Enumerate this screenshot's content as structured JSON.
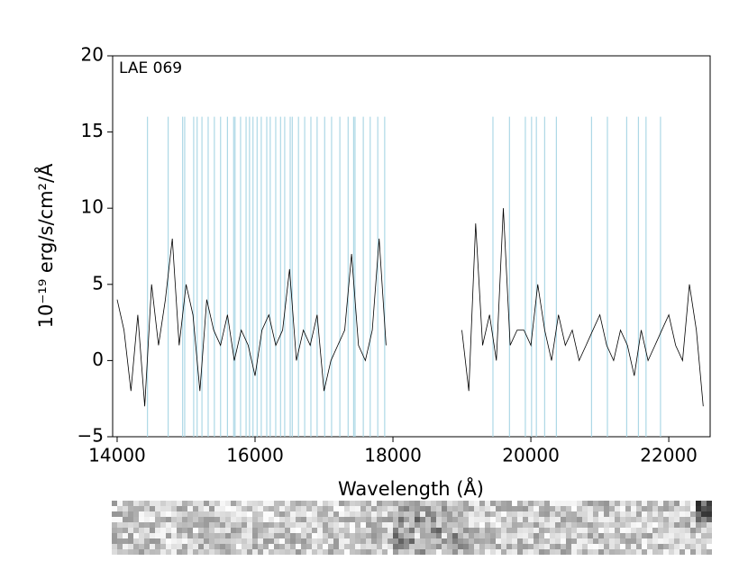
{
  "chart_data": {
    "type": "line",
    "annotation": "LAE 069",
    "x_label": "Wavelength (Å)",
    "y_label": "10⁻¹⁹ erg/s/cm²/Å",
    "xlim": [
      13935,
      22600
    ],
    "ylim": [
      -5,
      20
    ],
    "xticks": [
      14000,
      16000,
      18000,
      20000,
      22000
    ],
    "yticks": [
      {
        "value": -5,
        "label": "−5"
      },
      0,
      5,
      10,
      15,
      20
    ],
    "x": [
      14000,
      14100,
      14200,
      14300,
      14400,
      14500,
      14600,
      14700,
      14800,
      14900,
      15000,
      15100,
      15200,
      15300,
      15400,
      15500,
      15600,
      15700,
      15800,
      15900,
      16000,
      16100,
      16200,
      16300,
      16400,
      16500,
      16600,
      16700,
      16800,
      16900,
      17000,
      17100,
      17200,
      17300,
      17400,
      17500,
      17600,
      17700,
      17800,
      17900,
      18000,
      18100,
      18200,
      18300,
      18400,
      18500,
      18600,
      18700,
      18800,
      18900,
      19000,
      19100,
      19200,
      19300,
      19400,
      19500,
      19600,
      19700,
      19800,
      19900,
      20000,
      20100,
      20200,
      20300,
      20400,
      20500,
      20600,
      20700,
      20800,
      20900,
      21000,
      21100,
      21200,
      21300,
      21400,
      21500,
      21600,
      21700,
      21800,
      21900,
      22000,
      22100,
      22200,
      22300,
      22400,
      22500
    ],
    "series": [
      {
        "color": "#000000",
        "values": [
          4,
          2,
          -2,
          3,
          -3,
          5,
          1,
          4,
          8,
          1,
          5,
          3,
          -2,
          4,
          2,
          1,
          3,
          0,
          2,
          1,
          -1,
          2,
          3,
          1,
          2,
          6,
          0,
          2,
          1,
          3,
          -2,
          0,
          1,
          2,
          7,
          1,
          0,
          2,
          8,
          1,
          null,
          null,
          null,
          null,
          null,
          null,
          null,
          null,
          null,
          null,
          2,
          -2,
          9,
          1,
          3,
          0,
          10,
          1,
          2,
          2,
          1,
          5,
          2,
          0,
          3,
          1,
          2,
          0,
          1,
          2,
          3,
          1,
          0,
          2,
          1,
          -1,
          2,
          0,
          1,
          2,
          3,
          1,
          0,
          5,
          2,
          -3
        ]
      }
    ],
    "sky_lines": [
      14440,
      14740,
      14950,
      14980,
      15110,
      15160,
      15230,
      15320,
      15410,
      15500,
      15600,
      15690,
      15710,
      15790,
      15870,
      15920,
      15970,
      16030,
      16090,
      16170,
      16220,
      16300,
      16370,
      16430,
      16510,
      16540,
      16630,
      16720,
      16810,
      16900,
      17010,
      17110,
      17230,
      17350,
      17430,
      17450,
      17570,
      17670,
      17780,
      17880,
      19450,
      19690,
      19920,
      20010,
      20080,
      20200,
      20370,
      20880,
      21110,
      21390,
      21560,
      21670,
      21880
    ],
    "sky_lines_ymax": 16,
    "sky_line_color": "#add8e6"
  }
}
